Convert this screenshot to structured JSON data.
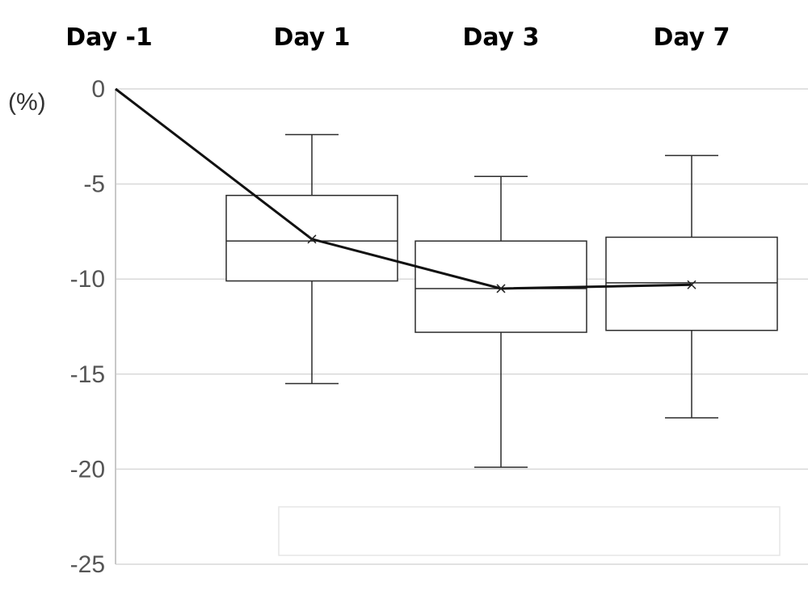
{
  "chart_data": {
    "type": "box",
    "categories": [
      "Day -1",
      "Day 1",
      "Day 3",
      "Day 7"
    ],
    "unit_label": "(%)",
    "ylim": [
      -25,
      0
    ],
    "yticks": [
      0,
      -5,
      -10,
      -15,
      -20,
      -25
    ],
    "grid": true,
    "boxes": [
      null,
      {
        "min": -15.5,
        "q1": -10.1,
        "median": -8.0,
        "q3": -5.6,
        "max": -2.4,
        "mean": -7.9
      },
      {
        "min": -19.9,
        "q1": -12.8,
        "median": -10.5,
        "q3": -8.0,
        "max": -4.6,
        "mean": -10.5
      },
      {
        "min": -17.3,
        "q1": -12.7,
        "median": -10.2,
        "q3": -7.8,
        "max": -3.5,
        "mean": -10.3
      }
    ],
    "mean_line": [
      0,
      -7.9,
      -10.5,
      -10.3
    ],
    "colors": {
      "line": "#111111",
      "box_stroke": "#2b2b2b",
      "grid": "#d9d9d9"
    }
  }
}
